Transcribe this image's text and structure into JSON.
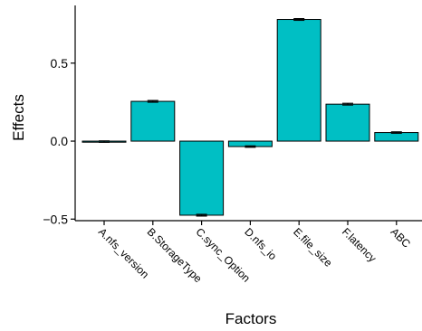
{
  "chart_data": {
    "type": "bar",
    "xlabel": "Factors",
    "ylabel": "Effects",
    "categories": [
      "A.nfs_version",
      "B.StorageType",
      "C.sync_Option",
      "D.nfs_io",
      "E.file_size",
      "F.latency",
      "ABC"
    ],
    "values": [
      -0.003,
      0.255,
      -0.475,
      -0.035,
      0.78,
      0.237,
      0.055
    ],
    "errors": [
      0.005,
      0.006,
      0.006,
      0.005,
      0.006,
      0.006,
      0.005
    ],
    "ylim": [
      -0.51,
      0.87
    ],
    "yticks": [
      {
        "value": -0.5,
        "label": "−0.5"
      },
      {
        "value": 0.0,
        "label": "0.0"
      },
      {
        "value": 0.5,
        "label": "0.5"
      }
    ],
    "grid": false,
    "legend": "none",
    "colors": {
      "bar_fill": "#00BFC4",
      "bar_stroke": "#000000",
      "axis": "#000000"
    }
  }
}
